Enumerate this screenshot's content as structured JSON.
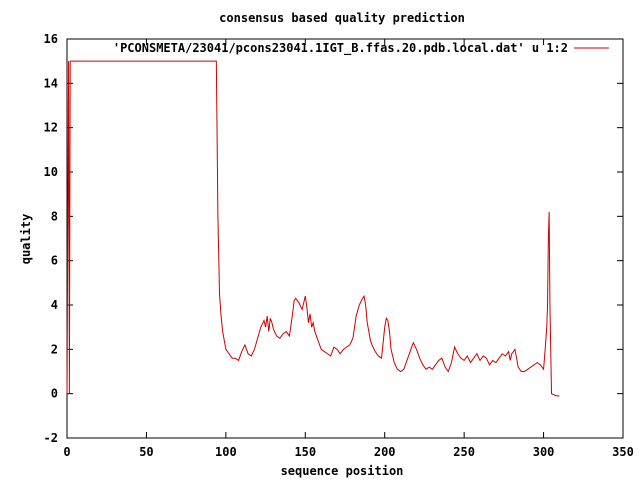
{
  "chart_data": {
    "type": "line",
    "title": "consensus based quality prediction",
    "xlabel": "sequence position",
    "ylabel": "quality",
    "xlim": [
      0,
      350
    ],
    "ylim": [
      -2,
      16
    ],
    "xticks": [
      0,
      50,
      100,
      150,
      200,
      250,
      300,
      350
    ],
    "yticks": [
      -2,
      0,
      2,
      4,
      6,
      8,
      10,
      12,
      14,
      16
    ],
    "grid": false,
    "legend_position": "top-right",
    "series": [
      {
        "name": "'PCONSMETA/23041/pcons23041.1IGT_B.ffas.20.pdb.local.dat' u 1:2",
        "color": "#cc0000",
        "x": [
          0,
          0.5,
          1,
          1.5,
          2,
          94,
          95,
          96,
          97,
          98,
          100,
          102,
          104,
          106,
          108,
          110,
          112,
          114,
          116,
          118,
          120,
          122,
          124,
          125,
          126,
          127,
          128,
          129,
          130,
          132,
          134,
          136,
          138,
          140,
          142,
          143,
          144,
          146,
          148,
          150,
          151,
          152,
          153,
          154,
          155,
          156,
          158,
          160,
          162,
          164,
          166,
          168,
          170,
          172,
          174,
          176,
          178,
          180,
          182,
          184,
          186,
          187,
          188,
          189,
          190,
          191,
          192,
          194,
          196,
          198,
          200,
          201,
          202,
          203,
          204,
          206,
          208,
          210,
          212,
          214,
          216,
          218,
          220,
          222,
          224,
          226,
          228,
          230,
          232,
          234,
          236,
          238,
          240,
          242,
          244,
          246,
          248,
          250,
          252,
          254,
          256,
          258,
          260,
          262,
          264,
          266,
          268,
          270,
          272,
          274,
          276,
          278,
          279,
          280,
          281,
          282,
          284,
          286,
          288,
          290,
          292,
          294,
          296,
          298,
          300,
          301,
          302,
          302.5,
          303,
          303.5,
          304,
          305,
          308,
          309,
          310
        ],
        "y": [
          0,
          7.5,
          15,
          0,
          15,
          15,
          8,
          4.5,
          3.5,
          2.8,
          2.0,
          1.8,
          1.6,
          1.6,
          1.5,
          1.9,
          2.2,
          1.8,
          1.7,
          2.0,
          2.5,
          3.0,
          3.3,
          3.0,
          3.5,
          2.8,
          3.4,
          3.2,
          2.9,
          2.6,
          2.5,
          2.7,
          2.8,
          2.6,
          3.6,
          4.2,
          4.3,
          4.1,
          3.8,
          4.4,
          3.9,
          3.2,
          3.6,
          3.0,
          3.2,
          2.8,
          2.4,
          2.0,
          1.9,
          1.8,
          1.7,
          2.1,
          2.0,
          1.8,
          2.0,
          2.1,
          2.2,
          2.5,
          3.5,
          4.0,
          4.3,
          4.4,
          4.0,
          3.2,
          2.8,
          2.4,
          2.2,
          1.9,
          1.7,
          1.6,
          3.0,
          3.4,
          3.3,
          2.8,
          2.0,
          1.4,
          1.1,
          1.0,
          1.1,
          1.5,
          1.9,
          2.3,
          2.0,
          1.6,
          1.3,
          1.1,
          1.2,
          1.1,
          1.3,
          1.5,
          1.6,
          1.2,
          1.0,
          1.4,
          2.1,
          1.8,
          1.6,
          1.5,
          1.7,
          1.4,
          1.6,
          1.8,
          1.5,
          1.7,
          1.6,
          1.3,
          1.5,
          1.4,
          1.6,
          1.8,
          1.7,
          1.9,
          1.5,
          1.8,
          1.9,
          2.0,
          1.2,
          1.0,
          1.0,
          1.1,
          1.2,
          1.3,
          1.4,
          1.3,
          1.1,
          2.0,
          3.0,
          4.0,
          7.0,
          8.2,
          4.0,
          0,
          -0.1,
          -0.1,
          -0.1
        ]
      }
    ]
  }
}
